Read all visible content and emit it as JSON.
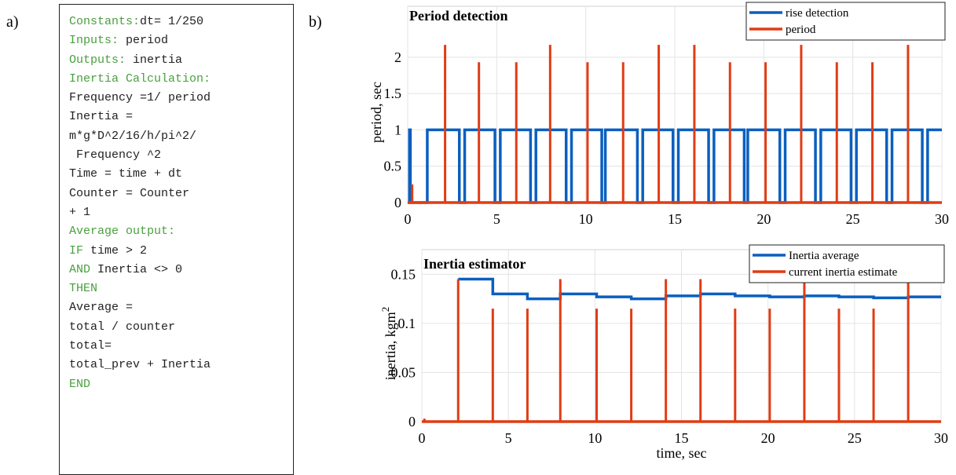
{
  "panel_a_label": "a)",
  "panel_b_label": "b)",
  "code": {
    "lines": [
      [
        {
          "text": "Constants:",
          "color": "#4aa03f"
        },
        {
          "text": "dt= 1/250",
          "color": "#222222"
        }
      ],
      [
        {
          "text": "Inputs:",
          "color": "#4aa03f"
        },
        {
          "text": " period",
          "color": "#222222"
        }
      ],
      [
        {
          "text": "Outputs:",
          "color": "#4aa03f"
        },
        {
          "text": " inertia",
          "color": "#222222"
        }
      ],
      [
        {
          "text": "Inertia Calculation:",
          "color": "#4aa03f"
        }
      ],
      [
        {
          "text": "Frequency =1/ period",
          "color": "#222222"
        }
      ],
      [
        {
          "text": "Inertia =",
          "color": "#222222"
        }
      ],
      [
        {
          "text": "m*g*D^2/16/h/pi^2/",
          "color": "#222222"
        }
      ],
      [
        {
          "text": " Frequency ^2",
          "color": "#222222"
        }
      ],
      [
        {
          "text": "Time = time + dt",
          "color": "#222222"
        }
      ],
      [
        {
          "text": "Counter = Counter",
          "color": "#222222"
        }
      ],
      [
        {
          "text": "+ 1",
          "color": "#222222"
        }
      ],
      [
        {
          "text": "Average output:",
          "color": "#4aa03f"
        }
      ],
      [
        {
          "text": "IF",
          "color": "#4aa03f"
        },
        {
          "text": " time > 2",
          "color": "#222222"
        }
      ],
      [
        {
          "text": "AND",
          "color": "#4aa03f"
        },
        {
          "text": " Inertia <> 0",
          "color": "#222222"
        }
      ],
      [
        {
          "text": "THEN",
          "color": "#4aa03f"
        }
      ],
      [
        {
          "text": "Average =",
          "color": "#222222"
        }
      ],
      [
        {
          "text": "total / counter",
          "color": "#222222"
        }
      ],
      [
        {
          "text": "total=",
          "color": "#222222"
        }
      ],
      [
        {
          "text": "total_prev + Inertia",
          "color": "#222222"
        }
      ],
      [
        {
          "text": "END",
          "color": "#4aa03f"
        }
      ]
    ]
  },
  "chart_data": [
    {
      "type": "line",
      "title": "Period detection",
      "ylabel": "period, sec",
      "xlim": [
        0,
        30
      ],
      "ylim": [
        0,
        2.7
      ],
      "xticks": [
        0,
        5,
        10,
        15,
        20,
        25,
        30
      ],
      "yticks": [
        0,
        0.5,
        1,
        1.5,
        2
      ],
      "grid": true,
      "legend": "upper right",
      "series": [
        {
          "name": "rise detection",
          "color": "#0a5fc0",
          "style": "line",
          "x": [
            0,
            0.1,
            0.1,
            0.15,
            0.15,
            1.1,
            1.1,
            2.9,
            2.9,
            3.2,
            3.2,
            4.9,
            4.9,
            5.2,
            5.2,
            6.9,
            6.9,
            7.2,
            7.2,
            8.9,
            8.9,
            9.2,
            9.2,
            10.9,
            10.9,
            11.1,
            11.1,
            12.9,
            12.9,
            13.2,
            13.2,
            14.9,
            14.9,
            15.2,
            15.2,
            16.9,
            16.9,
            17.2,
            17.2,
            18.9,
            18.9,
            19.1,
            19.1,
            20.9,
            20.9,
            21.2,
            21.2,
            22.9,
            22.9,
            23.2,
            23.2,
            24.9,
            24.9,
            25.2,
            25.2,
            26.9,
            26.9,
            27.2,
            27.2,
            28.9,
            28.9,
            29.2,
            29.2,
            30
          ],
          "values": [
            0,
            0,
            1,
            1,
            0,
            0,
            1,
            1,
            0,
            0,
            1,
            1,
            0,
            0,
            1,
            1,
            0,
            0,
            1,
            1,
            0,
            0,
            1,
            1,
            0,
            0,
            1,
            1,
            0,
            0,
            1,
            1,
            0,
            0,
            1,
            1,
            0,
            0,
            1,
            1,
            0,
            0,
            1,
            1,
            0,
            0,
            1,
            1,
            0,
            0,
            1,
            1,
            0,
            0,
            1,
            1,
            0,
            0,
            1,
            1,
            0,
            0,
            1,
            1
          ]
        },
        {
          "name": "period",
          "color": "#e03c14",
          "style": "stem",
          "x": [
            0.25,
            2.1,
            4.0,
            6.1,
            8.0,
            10.1,
            12.1,
            14.1,
            16.1,
            18.1,
            20.1,
            22.1,
            24.1,
            26.1,
            28.1
          ],
          "values": [
            0.25,
            2.17,
            1.93,
            1.93,
            2.17,
            1.93,
            1.93,
            2.17,
            2.17,
            1.93,
            1.93,
            2.17,
            1.93,
            1.93,
            2.17
          ]
        }
      ]
    },
    {
      "type": "line",
      "title": "Inertia estimator",
      "ylabel": "inertia, kgm",
      "ylabel_superscript": "2",
      "xlabel": "time, sec",
      "xlim": [
        0,
        30
      ],
      "ylim": [
        0,
        0.175
      ],
      "xticks": [
        0,
        5,
        10,
        15,
        20,
        25,
        30
      ],
      "yticks": [
        0,
        0.05,
        0.1,
        0.15
      ],
      "grid": true,
      "legend": "upper right",
      "series": [
        {
          "name": "Inertia average",
          "color": "#0a5fc0",
          "style": "line",
          "x": [
            2.1,
            4.1,
            4.1,
            6.1,
            6.1,
            8.0,
            8.0,
            10.1,
            10.1,
            12.1,
            12.1,
            14.1,
            14.1,
            16.1,
            16.1,
            18.1,
            18.1,
            20.1,
            20.1,
            22.1,
            22.1,
            24.1,
            24.1,
            26.1,
            26.1,
            28.1,
            28.1,
            30
          ],
          "values": [
            0.145,
            0.145,
            0.13,
            0.13,
            0.125,
            0.125,
            0.13,
            0.13,
            0.127,
            0.127,
            0.125,
            0.125,
            0.128,
            0.128,
            0.13,
            0.13,
            0.128,
            0.128,
            0.127,
            0.127,
            0.128,
            0.128,
            0.127,
            0.127,
            0.126,
            0.126,
            0.127,
            0.127
          ]
        },
        {
          "name": "current inertia estimate",
          "color": "#e03c14",
          "style": "stem",
          "x": [
            0.15,
            2.1,
            4.1,
            6.1,
            8.0,
            10.1,
            12.1,
            14.1,
            16.1,
            18.1,
            20.1,
            22.1,
            24.1,
            26.1,
            28.1
          ],
          "values": [
            0.003,
            0.145,
            0.115,
            0.115,
            0.145,
            0.115,
            0.115,
            0.145,
            0.145,
            0.115,
            0.115,
            0.145,
            0.115,
            0.115,
            0.145
          ]
        }
      ]
    }
  ]
}
